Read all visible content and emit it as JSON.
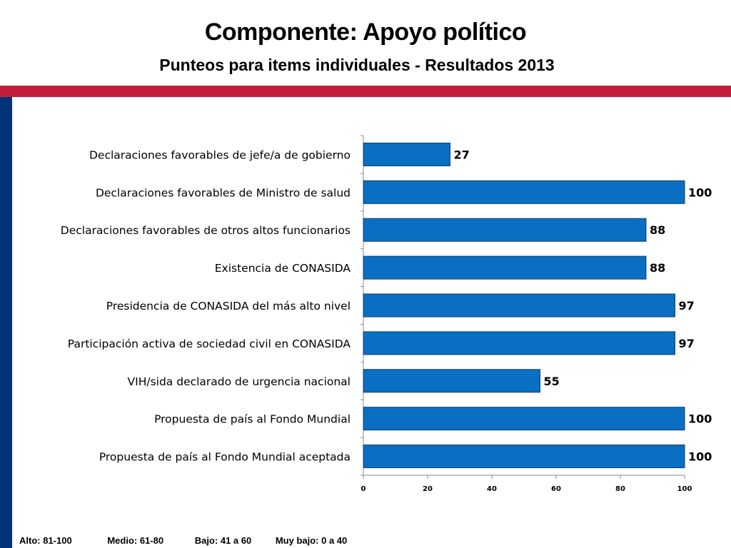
{
  "header": {
    "title": "Componente: Apoyo político",
    "subtitle": "Punteos para items individuales - Resultados 2013"
  },
  "colors": {
    "red_band": "#C41E3A",
    "side_bar": "#003377",
    "bar_fill": "#0A6FC2",
    "bar_stroke": "#0A3E6B",
    "axis": "#888888"
  },
  "chart_data": {
    "type": "bar",
    "orientation": "horizontal",
    "title": "",
    "xlabel": "",
    "ylabel": "",
    "xlim": [
      0,
      100
    ],
    "ticks": [
      0,
      20,
      40,
      60,
      80,
      100
    ],
    "grid": false,
    "legend": "none",
    "categories": [
      "Declaraciones favorables de jefe/a de gobierno",
      "Declaraciones favorables de Ministro de salud",
      "Declaraciones favorables de otros altos funcionarios",
      "Existencia de CONASIDA",
      "Presidencia de CONASIDA del más alto nivel",
      "Participación activa de sociedad civil en CONASIDA",
      "VIH/sida declarado de urgencia nacional",
      "Propuesta de país al Fondo Mundial",
      "Propuesta de país al Fondo Mundial aceptada"
    ],
    "values": [
      27,
      100,
      88,
      88,
      97,
      97,
      55,
      100,
      100
    ]
  },
  "footer": {
    "legend_items": [
      "Alto:  81-100",
      "Medio: 61-80",
      "Bajo:  41 a 60",
      "Muy bajo:  0 a 40"
    ]
  }
}
